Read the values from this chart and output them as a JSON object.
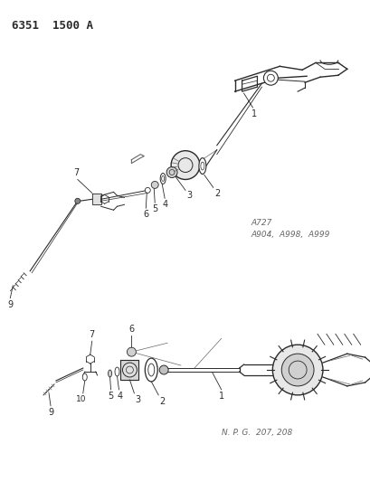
{
  "title": "6351  1500 A",
  "bg_color": "#ffffff",
  "lc": "#2a2a2a",
  "gray": "#666666",
  "annotation_top": "A727\nA904,  A998,  A999",
  "annotation_bottom": "N. P. G.  207, 208",
  "figsize": [
    4.1,
    5.33
  ],
  "dpi": 100
}
